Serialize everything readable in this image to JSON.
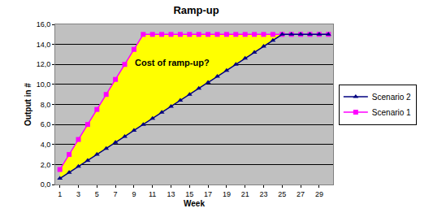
{
  "chart_data": {
    "type": "line",
    "title": "Ramp-up",
    "x_label": "Week",
    "y_label": "Output in #",
    "annotations": [
      "Cost of ramp-up?"
    ],
    "x": [
      1,
      2,
      3,
      4,
      5,
      6,
      7,
      8,
      9,
      10,
      11,
      12,
      13,
      14,
      15,
      16,
      17,
      18,
      19,
      20,
      21,
      22,
      23,
      24,
      25,
      26,
      27,
      28,
      29,
      30
    ],
    "xlim": [
      0.5,
      30.5
    ],
    "xticks": [
      1,
      3,
      5,
      7,
      9,
      11,
      13,
      15,
      17,
      19,
      21,
      23,
      25,
      27,
      29
    ],
    "ylim": [
      0,
      16
    ],
    "yticks": [
      {
        "value": 0,
        "label": "0,0"
      },
      {
        "value": 2,
        "label": "2,0"
      },
      {
        "value": 4,
        "label": "4,0"
      },
      {
        "value": 6,
        "label": "6,0"
      },
      {
        "value": 8,
        "label": "8,0"
      },
      {
        "value": 10,
        "label": "10,0"
      },
      {
        "value": 12,
        "label": "12,0"
      },
      {
        "value": 14,
        "label": "14,0"
      },
      {
        "value": 16,
        "label": "16,0"
      }
    ],
    "grid": true,
    "legend": "right",
    "series": [
      {
        "name": "Scenario 1",
        "color": "#ff00ff",
        "marker": "square",
        "values": [
          1.5,
          3.0,
          4.5,
          6.0,
          7.5,
          9.0,
          10.5,
          12.0,
          13.5,
          15,
          15,
          15,
          15,
          15,
          15,
          15,
          15,
          15,
          15,
          15,
          15,
          15,
          15,
          15,
          15,
          15,
          15,
          15,
          15,
          15
        ]
      },
      {
        "name": "Scenario 2",
        "color": "#000080",
        "marker": "triangle-up",
        "values": [
          0.6,
          1.2,
          1.8,
          2.4,
          3.0,
          3.6,
          4.2,
          4.8,
          5.4,
          6.0,
          6.6,
          7.2,
          7.8,
          8.4,
          9.0,
          9.6,
          10.2,
          10.8,
          11.4,
          12.0,
          12.6,
          13.2,
          13.8,
          14.4,
          15,
          15,
          15,
          15,
          15,
          15
        ]
      }
    ]
  }
}
